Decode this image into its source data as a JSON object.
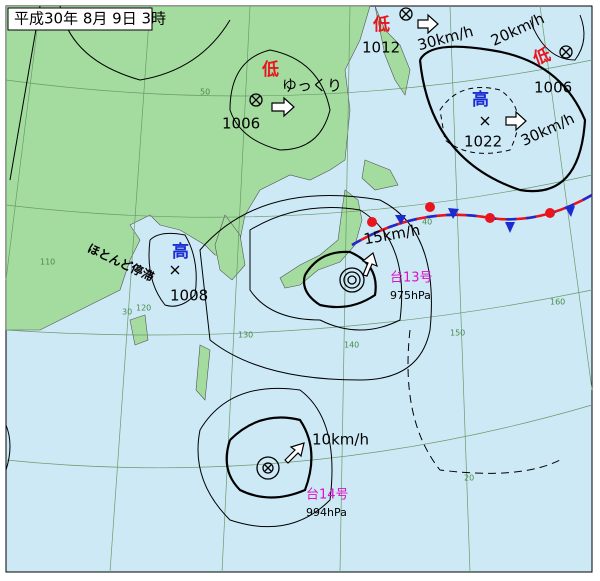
{
  "header": {
    "title": "平成30年 8月 9日 3時"
  },
  "systems": [
    {
      "symbol": "低",
      "pressure": 1006,
      "motion": "ゆっくり"
    },
    {
      "symbol": "低",
      "pressure": 1012,
      "motion": "30km/h"
    },
    {
      "symbol": "低",
      "pressure": 1006,
      "motion": "20km/h"
    },
    {
      "symbol": "高",
      "pressure": 1022,
      "motion": "30km/h"
    },
    {
      "symbol": "高",
      "pressure": 1008,
      "motion": "ほとんど停滞"
    }
  ],
  "typhoons": [
    {
      "name": "台13号",
      "pressure": "975hPa",
      "motion": "15km/h"
    },
    {
      "name": "台14号",
      "pressure": "994hPa",
      "motion": "10km/h"
    }
  ],
  "grid_labels": [
    "50",
    "40",
    "30",
    "20",
    "110",
    "120",
    "130",
    "140",
    "150",
    "160"
  ]
}
